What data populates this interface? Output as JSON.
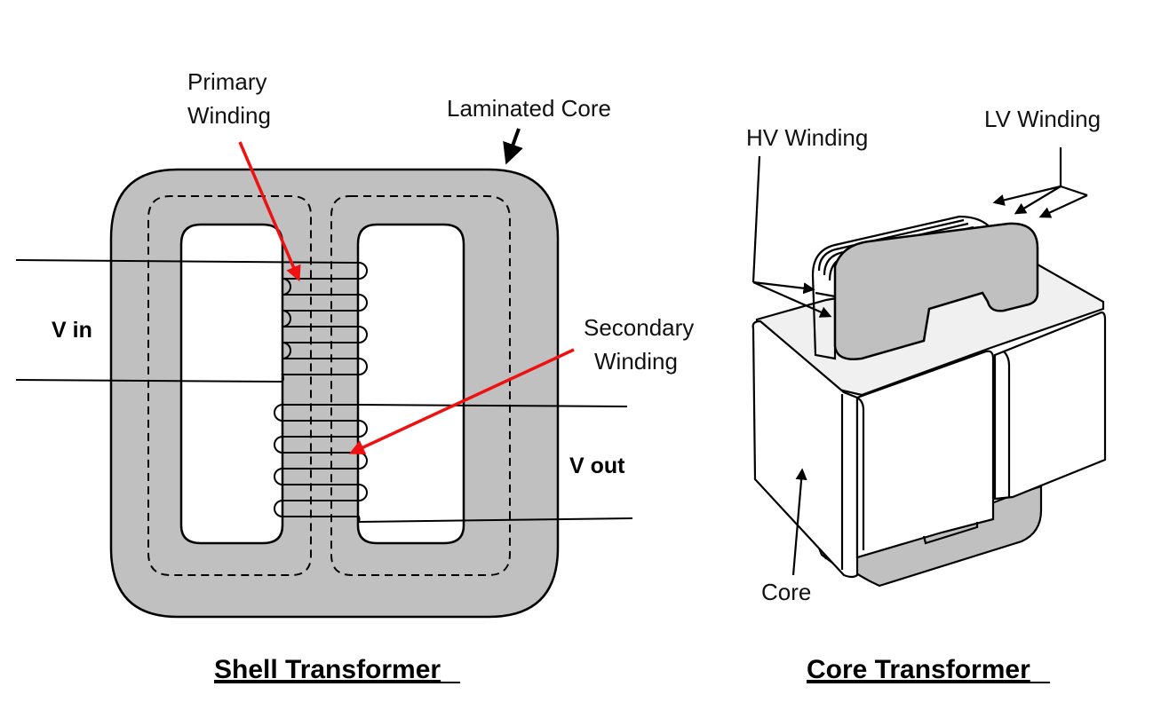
{
  "shell": {
    "caption": "Shell Transformer",
    "primary_label": [
      "Primary",
      "Winding"
    ],
    "secondary_label": [
      "Secondary",
      "Winding"
    ],
    "core_label": "Laminated Core",
    "vin": "V in",
    "vout": "V out"
  },
  "core_transformer": {
    "caption": "Core Transformer",
    "hv_label": "HV Winding",
    "lv_label": "LV Winding",
    "core_label": "Core"
  },
  "colors": {
    "core_fill": "#c0c0c0",
    "face_fill": "#f0f0f0",
    "arrow_red": "#ee1111"
  }
}
